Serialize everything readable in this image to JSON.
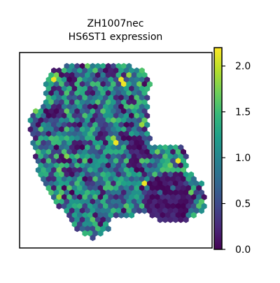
{
  "chart_data": {
    "type": "scatter",
    "title": "ZH1007nec",
    "subtitle": "HS6ST1 expression",
    "xlabel": "",
    "ylabel": "",
    "grid": false,
    "axes_visible": false,
    "marker": "hexagon",
    "colormap": "viridis",
    "colorbar": {
      "min": 0.0,
      "max": 2.2,
      "ticks": [
        0.0,
        0.5,
        1.0,
        1.5,
        2.0
      ],
      "tick_labels": [
        "0.0",
        "0.5",
        "1.0",
        "1.5",
        "2.0"
      ]
    },
    "colors": {
      "viridis": [
        "#440154",
        "#482878",
        "#3e4989",
        "#31688e",
        "#26828e",
        "#1f9e89",
        "#35b779",
        "#6ece58",
        "#b5de2b",
        "#fde725"
      ],
      "frame": "#000000",
      "background": "#ffffff"
    }
  }
}
